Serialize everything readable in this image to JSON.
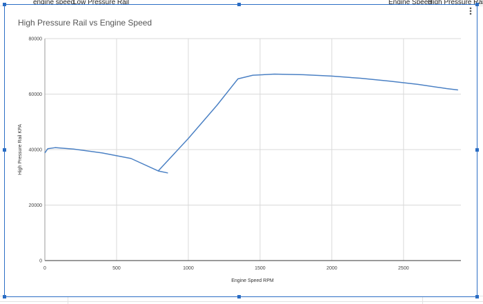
{
  "sheet_headers": [
    "engine speed",
    "Low Pressure Rail",
    "Engine Speed",
    "High Pressure Rail"
  ],
  "chart_data": {
    "type": "line",
    "title": "High Pressure Rail vs Engine Speed",
    "x_label": "Engine Speed RPM",
    "y_label": "High Pressure Rail KPA",
    "x": [
      0,
      20,
      72,
      200,
      400,
      600,
      790,
      855,
      790,
      1000,
      1200,
      1346,
      1450,
      1600,
      1800,
      2000,
      2200,
      2400,
      2600,
      2800,
      2880
    ],
    "y": [
      38800,
      40300,
      40700,
      40200,
      38800,
      36800,
      32300,
      31600,
      32300,
      44000,
      56000,
      65500,
      66800,
      67200,
      67000,
      66500,
      65700,
      64700,
      63500,
      62000,
      61500
    ],
    "color": "#4a80c4",
    "xlim": [
      0,
      2900
    ],
    "xticks": [
      0,
      500,
      1000,
      1500,
      2000,
      2500
    ],
    "ylim": [
      0,
      80000
    ],
    "yticks": [
      0,
      20000,
      40000,
      60000,
      80000
    ],
    "grid": true
  }
}
